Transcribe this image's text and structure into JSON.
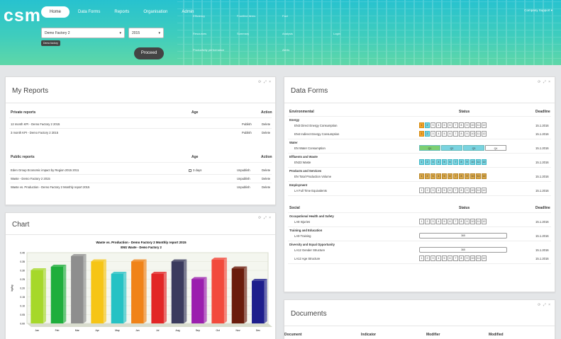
{
  "header": {
    "logo": "csm",
    "nav": [
      "Home",
      "Data Forms",
      "Reports",
      "Organisation",
      "Admin"
    ],
    "links": [
      "Efficiency",
      "Resources",
      "Frontline items",
      "Summary",
      "Productivity performance",
      "Fact",
      "Analysis",
      "Alerts",
      "Login"
    ],
    "user": "Company Support ▾",
    "entity_select": "Demo Factory 2",
    "year_select": "2015",
    "tag": "Demo factory",
    "proceed": "Proceed"
  },
  "my_reports": {
    "title": "My Reports",
    "private_header": [
      "Private reports",
      "Age",
      "Action"
    ],
    "private_rows": [
      [
        "12 month KPI - Demo Factory 2 2015",
        "Publish",
        "Delete"
      ],
      [
        "3 month KPI - Demo Factory 2 2015",
        "Publish",
        "Delete"
      ]
    ],
    "public_header": [
      "Public reports",
      "Age",
      "Action"
    ],
    "public_rows": [
      [
        "Eden Group Economic impact by Region 2015 2011",
        "3 days",
        "Unpublish",
        "Delete"
      ],
      [
        "Waste - Demo Factory 2 2015",
        "",
        "Unpublish",
        "Delete"
      ],
      [
        "Waste vs. Production - Demo Factory 2 Monthly report 2015",
        "",
        "Unpublish",
        "Delete"
      ]
    ]
  },
  "chart_panel": {
    "title": "Chart",
    "chart_data": {
      "type": "bar",
      "title": "Waste vs. Production - Demo Factory 2 Monthly report 2015",
      "subtitle": "ENG Waste - Demo Factory 2",
      "ylabel": "kg/kg",
      "categories": [
        "Jan",
        "Feb",
        "Mar",
        "Apr",
        "May",
        "Jun",
        "Jul",
        "Aug",
        "Sep",
        "Oct",
        "Nov",
        "Dec"
      ],
      "values": [
        0.3,
        0.32,
        0.38,
        0.35,
        0.28,
        0.35,
        0.28,
        0.35,
        0.25,
        0.36,
        0.31,
        0.24
      ],
      "ylim": [
        0,
        0.4
      ],
      "ticks": [
        "0.00",
        "0.05",
        "0.10",
        "0.15",
        "0.20",
        "0.25",
        "0.30",
        "0.35",
        "0.40"
      ],
      "colors": [
        "#a6d82a",
        "#1fae3c",
        "#8e8e8e",
        "#f6c516",
        "#26c2c4",
        "#f08318",
        "#e22626",
        "#3b3b5e",
        "#9b1fae",
        "#f24a3c",
        "#6a1c0c",
        "#1e1e8c"
      ]
    },
    "tools": "⟳ ⤢ ×"
  },
  "data_forms": {
    "title": "Data Forms",
    "env_header": [
      "Environmental",
      "Status",
      "Deadline"
    ],
    "social_header": [
      "Social",
      "Status",
      "Deadline"
    ],
    "groups": [
      {
        "name": "Energy",
        "rows": [
          {
            "label": "EN3 Direct Energy Consumption",
            "deadline": "15.1.2016"
          },
          {
            "label": "EN4 Indirect Energy Consumption",
            "deadline": "15.1.2016"
          }
        ]
      },
      {
        "name": "Water",
        "rows": [
          {
            "label": "EN Water Consumption",
            "deadline": "15.1.2016"
          }
        ]
      },
      {
        "name": "Effluents and Waste",
        "rows": [
          {
            "label": "EN23 Waste",
            "deadline": "15.1.2016"
          }
        ]
      },
      {
        "name": "Products and Services",
        "rows": [
          {
            "label": "EN Total Production Volume",
            "deadline": "15.1.2016"
          }
        ]
      },
      {
        "name": "Employment",
        "rows": [
          {
            "label": "LA Full Time Equivalents",
            "deadline": "15.1.2016"
          }
        ]
      },
      {
        "name": "Occupational Health and Safety",
        "rows": [
          {
            "label": "LA8 Injuries",
            "deadline": "15.1.2016"
          }
        ]
      },
      {
        "name": "Training and Education",
        "rows": [
          {
            "label": "LA9 Training",
            "deadline": "15.1.2016"
          }
        ]
      },
      {
        "name": "Diversity and Equal Opportunity",
        "rows": [
          {
            "label": "LA12 Gender Structure",
            "deadline": "15.1.2016"
          },
          {
            "label": "LA12 Age Structure",
            "deadline": "15.1.2016"
          }
        ]
      }
    ],
    "quarters": [
      "Q1",
      "Q2",
      "Q3",
      "Q4"
    ],
    "year_label": "365"
  },
  "documents": {
    "title": "Documents",
    "columns": [
      "Document",
      "Indicator",
      "Modifier",
      "Modified"
    ]
  },
  "panel_tools": "⟳ ⤢ ×"
}
